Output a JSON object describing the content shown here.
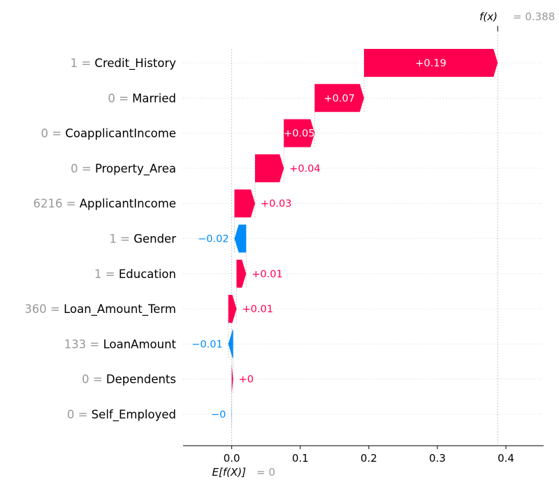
{
  "chart_data": {
    "type": "waterfall",
    "fx_label": "f(x)",
    "fx_value_text": "= 0.388",
    "fx_value": 0.388,
    "efx_label": "E[f(X)]",
    "efx_value_text": "= 0",
    "efx_value": 0,
    "xlim": [
      -0.071,
      0.455
    ],
    "xticks": [
      0.0,
      0.1,
      0.2,
      0.3,
      0.4
    ],
    "xtick_labels": [
      "0.0",
      "0.1",
      "0.2",
      "0.3",
      "0.4"
    ],
    "colors": {
      "positive": "#ff0051",
      "negative": "#008bfb",
      "muted": "#999999"
    },
    "features": [
      {
        "value": "1",
        "name": "Credit_History",
        "start": 0.193,
        "end": 0.388,
        "label": "+0.19",
        "sign": "pos"
      },
      {
        "value": "0",
        "name": "Married",
        "start": 0.121,
        "end": 0.193,
        "label": "+0.07",
        "sign": "pos"
      },
      {
        "value": "0",
        "name": "CoapplicantIncome",
        "start": 0.076,
        "end": 0.121,
        "label": "+0.05",
        "sign": "pos"
      },
      {
        "value": "0",
        "name": "Property_Area",
        "start": 0.034,
        "end": 0.076,
        "label": "+0.04",
        "sign": "pos"
      },
      {
        "value": "6216",
        "name": "ApplicantIncome",
        "start": 0.004,
        "end": 0.034,
        "label": "+0.03",
        "sign": "pos"
      },
      {
        "value": "1",
        "name": "Gender",
        "start": 0.021,
        "end": 0.004,
        "label": "−0.02",
        "sign": "neg"
      },
      {
        "value": "1",
        "name": "Education",
        "start": 0.007,
        "end": 0.021,
        "label": "+0.01",
        "sign": "pos"
      },
      {
        "value": "360",
        "name": "Loan_Amount_Term",
        "start": -0.005,
        "end": 0.007,
        "label": "+0.01",
        "sign": "pos"
      },
      {
        "value": "133",
        "name": "LoanAmount",
        "start": 0.002,
        "end": -0.005,
        "label": "−0.01",
        "sign": "neg"
      },
      {
        "value": "0",
        "name": "Dependents",
        "start": 0.0,
        "end": 0.002,
        "label": "+0",
        "sign": "pos"
      },
      {
        "value": "0",
        "name": "Self_Employed",
        "start": 0.0,
        "end": -0.0003,
        "label": "−0",
        "sign": "neg"
      }
    ]
  }
}
